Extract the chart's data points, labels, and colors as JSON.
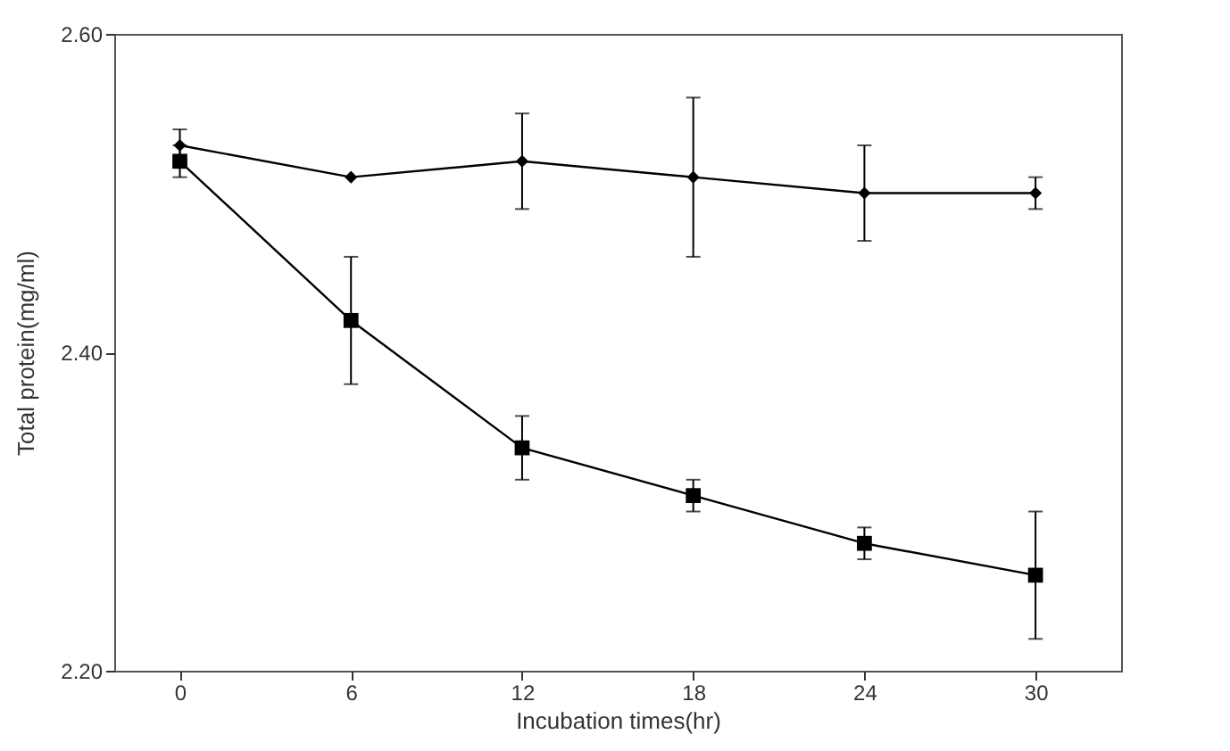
{
  "chart_data": {
    "type": "line",
    "xlabel": "Incubation times(hr)",
    "ylabel": "Total protein(mg/ml)",
    "x": [
      0,
      6,
      12,
      18,
      24,
      30
    ],
    "series": [
      {
        "color": "#000000",
        "marker": "diamond",
        "values": [
          2.53,
          2.51,
          2.52,
          2.51,
          2.5,
          2.5
        ],
        "errors": [
          0.01,
          null,
          0.03,
          0.05,
          0.03,
          0.01
        ]
      },
      {
        "color": "#000000",
        "marker": "square",
        "values": [
          2.52,
          2.42,
          2.34,
          2.31,
          2.28,
          2.26
        ],
        "errors": [
          0.01,
          0.04,
          0.02,
          0.01,
          0.01,
          0.04
        ]
      }
    ],
    "xlim": [
      -2.3,
      33
    ],
    "xticks": [
      0,
      6,
      12,
      18,
      24,
      30
    ],
    "ylim": [
      2.2,
      2.6
    ],
    "yticks": [
      {
        "value": 2.2,
        "label": "2.20"
      },
      {
        "value": 2.4,
        "label": "2.40"
      },
      {
        "value": 2.6,
        "label": "2.60"
      }
    ],
    "grid": false,
    "line_style": "solid"
  }
}
